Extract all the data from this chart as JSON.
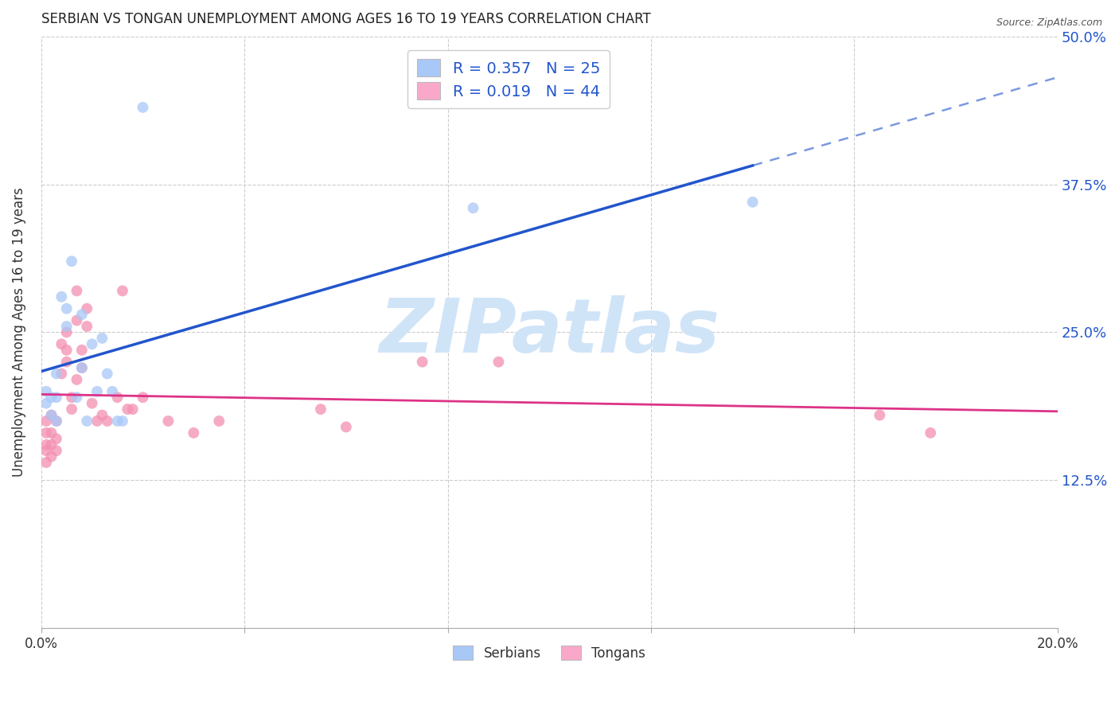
{
  "title": "SERBIAN VS TONGAN UNEMPLOYMENT AMONG AGES 16 TO 19 YEARS CORRELATION CHART",
  "source": "Source: ZipAtlas.com",
  "ylabel": "Unemployment Among Ages 16 to 19 years",
  "xlim": [
    0.0,
    0.2
  ],
  "ylim": [
    0.0,
    0.5
  ],
  "xticks": [
    0.0,
    0.04,
    0.08,
    0.12,
    0.16,
    0.2
  ],
  "xtick_labels": [
    "0.0%",
    "",
    "",
    "",
    "",
    "20.0%"
  ],
  "yticks": [
    0.0,
    0.125,
    0.25,
    0.375,
    0.5
  ],
  "ytick_labels_right": [
    "",
    "12.5%",
    "25.0%",
    "37.5%",
    "50.0%"
  ],
  "legend_label1": "R = 0.357   N = 25",
  "legend_label2": "R = 0.019   N = 44",
  "legend_color1": "#a8c8f8",
  "legend_color2": "#f9a8c9",
  "scatter_color1": "#a8c8f8",
  "scatter_color2": "#f48fb1",
  "line_color1": "#2255cc",
  "line_color2": "#dd3388",
  "watermark_text": "ZIPatlas",
  "watermark_color": "#d0e4f8",
  "background_color": "#ffffff",
  "grid_color": "#cccccc",
  "title_color": "#222222",
  "axis_label_color": "#333333",
  "tick_label_color_right": "#2255cc",
  "serbian_x": [
    0.001,
    0.001,
    0.002,
    0.002,
    0.003,
    0.003,
    0.003,
    0.004,
    0.005,
    0.005,
    0.006,
    0.007,
    0.008,
    0.008,
    0.009,
    0.01,
    0.011,
    0.012,
    0.013,
    0.014,
    0.015,
    0.016,
    0.02,
    0.085,
    0.14
  ],
  "serbian_y": [
    0.19,
    0.2,
    0.18,
    0.195,
    0.175,
    0.195,
    0.215,
    0.28,
    0.255,
    0.27,
    0.31,
    0.195,
    0.265,
    0.22,
    0.175,
    0.24,
    0.2,
    0.245,
    0.215,
    0.2,
    0.175,
    0.175,
    0.44,
    0.355,
    0.36
  ],
  "tongan_x": [
    0.001,
    0.001,
    0.001,
    0.001,
    0.001,
    0.002,
    0.002,
    0.002,
    0.002,
    0.003,
    0.003,
    0.003,
    0.004,
    0.004,
    0.005,
    0.005,
    0.005,
    0.006,
    0.006,
    0.007,
    0.007,
    0.007,
    0.008,
    0.008,
    0.009,
    0.009,
    0.01,
    0.011,
    0.012,
    0.013,
    0.015,
    0.016,
    0.017,
    0.018,
    0.02,
    0.025,
    0.03,
    0.035,
    0.055,
    0.06,
    0.075,
    0.09,
    0.165,
    0.175
  ],
  "tongan_y": [
    0.175,
    0.155,
    0.165,
    0.15,
    0.14,
    0.18,
    0.165,
    0.155,
    0.145,
    0.175,
    0.16,
    0.15,
    0.24,
    0.215,
    0.25,
    0.235,
    0.225,
    0.195,
    0.185,
    0.285,
    0.26,
    0.21,
    0.235,
    0.22,
    0.27,
    0.255,
    0.19,
    0.175,
    0.18,
    0.175,
    0.195,
    0.285,
    0.185,
    0.185,
    0.195,
    0.175,
    0.165,
    0.175,
    0.185,
    0.17,
    0.225,
    0.225,
    0.18,
    0.165
  ],
  "marker_size": 100,
  "legend_fontsize": 14,
  "title_fontsize": 12,
  "axis_label_fontsize": 12,
  "line_x_start": 0.0,
  "line_x_solid_end": 0.14,
  "line_x_full_end": 0.2
}
